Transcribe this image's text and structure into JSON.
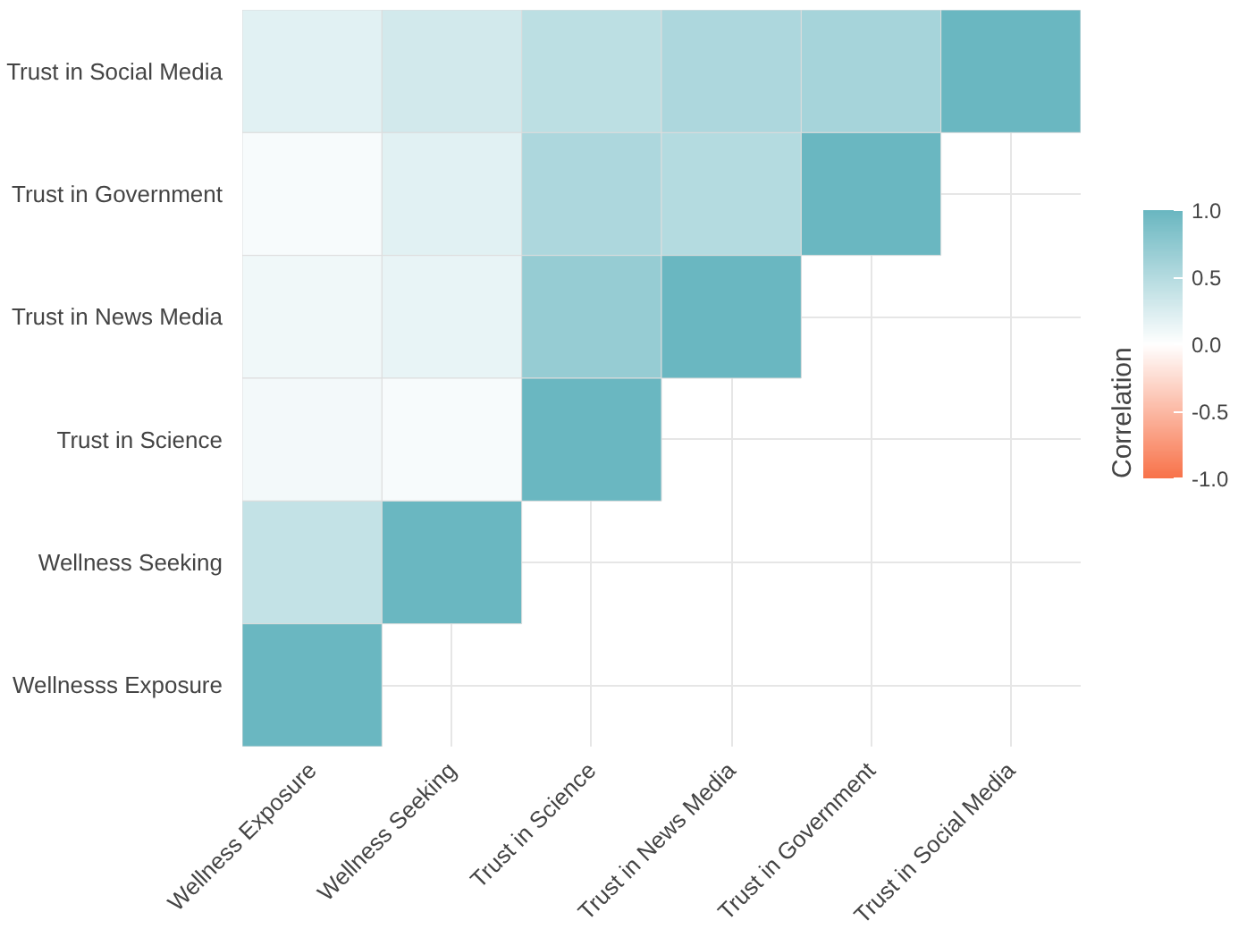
{
  "chart_data": {
    "type": "heatmap",
    "categories": [
      "Wellness Exposure",
      "Wellness Seeking",
      "Trust in Science",
      "Trust in News Media",
      "Trust in Government",
      "Trust in Social Media"
    ],
    "y_categories": [
      "Trust in Social Media",
      "Trust in Government",
      "Trust in News Media",
      "Trust in Science",
      "Wellness Seeking",
      "Wellnesss Exposure"
    ],
    "cells": [
      [
        0.2,
        0.3,
        0.45,
        0.55,
        0.6,
        1.0
      ],
      [
        0.05,
        0.2,
        0.55,
        0.5,
        1.0,
        null
      ],
      [
        0.1,
        0.15,
        0.7,
        1.0,
        null,
        null
      ],
      [
        0.08,
        0.05,
        1.0,
        null,
        null,
        null
      ],
      [
        0.4,
        1.0,
        null,
        null,
        null,
        null
      ],
      [
        1.0,
        null,
        null,
        null,
        null,
        null
      ]
    ],
    "clabel": "Correlation",
    "clim": [
      -1.0,
      1.0
    ],
    "cticks": [
      {
        "value": 1.0,
        "label": "1.0"
      },
      {
        "value": 0.5,
        "label": "0.5"
      },
      {
        "value": 0.0,
        "label": "0.0"
      },
      {
        "value": -0.5,
        "label": "-0.5"
      },
      {
        "value": -1.0,
        "label": "-1.0"
      }
    ],
    "colors": [
      "#f8734a",
      "#ffffff",
      "#6ab7c1"
    ],
    "grid": true
  }
}
